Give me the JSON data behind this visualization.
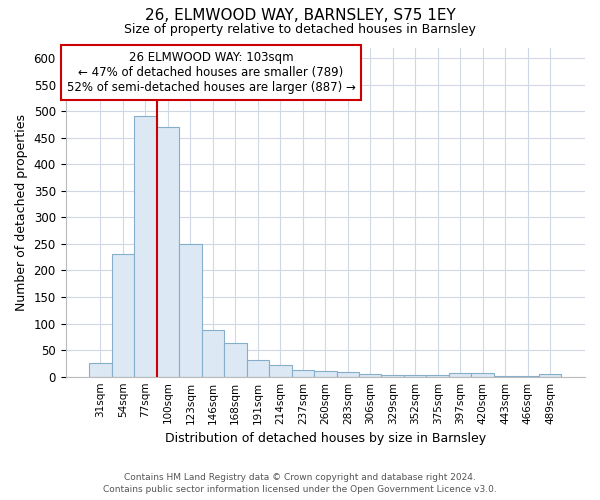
{
  "title": "26, ELMWOOD WAY, BARNSLEY, S75 1EY",
  "subtitle": "Size of property relative to detached houses in Barnsley",
  "xlabel": "Distribution of detached houses by size in Barnsley",
  "ylabel": "Number of detached properties",
  "footer_line1": "Contains HM Land Registry data © Crown copyright and database right 2024.",
  "footer_line2": "Contains public sector information licensed under the Open Government Licence v3.0.",
  "annotation_line1": "26 ELMWOOD WAY: 103sqm",
  "annotation_line2": "← 47% of detached houses are smaller (789)",
  "annotation_line3": "52% of semi-detached houses are larger (887) →",
  "bar_color": "#dce9f5",
  "bar_edge_color": "#85aecb",
  "vline_color": "#cc0000",
  "annotation_box_edge_color": "#cc0000",
  "background_color": "#ffffff",
  "grid_color": "#d0d8e8",
  "bin_labels": [
    "31sqm",
    "54sqm",
    "77sqm",
    "100sqm",
    "123sqm",
    "146sqm",
    "168sqm",
    "191sqm",
    "214sqm",
    "237sqm",
    "260sqm",
    "283sqm",
    "306sqm",
    "329sqm",
    "352sqm",
    "375sqm",
    "397sqm",
    "420sqm",
    "443sqm",
    "466sqm",
    "489sqm"
  ],
  "bar_heights": [
    25,
    232,
    491,
    470,
    249,
    88,
    63,
    31,
    22,
    13,
    11,
    9,
    5,
    4,
    4,
    4,
    7,
    7,
    1,
    1,
    5
  ],
  "vline_x_index": 3,
  "ylim": [
    0,
    620
  ],
  "yticks": [
    0,
    50,
    100,
    150,
    200,
    250,
    300,
    350,
    400,
    450,
    500,
    550,
    600
  ],
  "figsize": [
    6.0,
    5.0
  ],
  "dpi": 100
}
